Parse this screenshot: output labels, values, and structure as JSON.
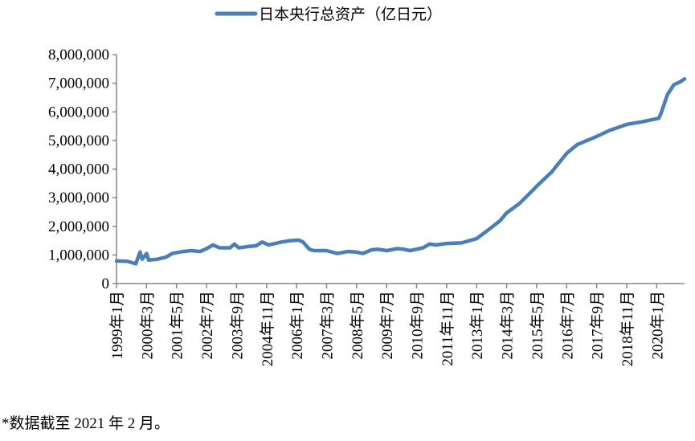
{
  "chart_data": {
    "type": "line",
    "title": "",
    "xlabel": "",
    "ylabel": "",
    "ylim": [
      0,
      8000000
    ],
    "y_ticks": [
      "0",
      "1,000,000",
      "2,000,000",
      "3,000,000",
      "4,000,000",
      "5,000,000",
      "6,000,000",
      "7,000,000",
      "8,000,000"
    ],
    "x_range": [
      "1999-01",
      "2021-02"
    ],
    "x_ticks": [
      {
        "date": "1999-01",
        "label": "1999年1月"
      },
      {
        "date": "2000-03",
        "label": "2000年3月"
      },
      {
        "date": "2001-05",
        "label": "2001年5月"
      },
      {
        "date": "2002-07",
        "label": "2002年7月"
      },
      {
        "date": "2003-09",
        "label": "2003年9月"
      },
      {
        "date": "2004-11",
        "label": "2004年11月"
      },
      {
        "date": "2006-01",
        "label": "2006年1月"
      },
      {
        "date": "2007-03",
        "label": "2007年3月"
      },
      {
        "date": "2008-05",
        "label": "2008年5月"
      },
      {
        "date": "2009-07",
        "label": "2009年7月"
      },
      {
        "date": "2010-09",
        "label": "2010年9月"
      },
      {
        "date": "2011-11",
        "label": "2011年11月"
      },
      {
        "date": "2013-01",
        "label": "2013年1月"
      },
      {
        "date": "2014-03",
        "label": "2014年3月"
      },
      {
        "date": "2015-05",
        "label": "2015年5月"
      },
      {
        "date": "2016-07",
        "label": "2016年7月"
      },
      {
        "date": "2017-09",
        "label": "2017年9月"
      },
      {
        "date": "2018-11",
        "label": "2018年11月"
      },
      {
        "date": "2020-01",
        "label": "2020年1月"
      }
    ],
    "grid": false,
    "legend_position": "top",
    "series": [
      {
        "name": "日本央行总资产（亿日元）",
        "color": "#4a7ebb",
        "x": [
          "1999-01",
          "1999-06",
          "1999-10",
          "1999-12",
          "2000-01",
          "2000-03",
          "2000-04",
          "2000-08",
          "2000-12",
          "2001-03",
          "2001-08",
          "2001-12",
          "2002-04",
          "2002-07",
          "2002-10",
          "2003-01",
          "2003-06",
          "2003-08",
          "2003-10",
          "2004-03",
          "2004-06",
          "2004-09",
          "2004-12",
          "2005-06",
          "2005-10",
          "2006-02",
          "2006-04",
          "2006-07",
          "2006-09",
          "2007-03",
          "2007-08",
          "2008-01",
          "2008-05",
          "2008-08",
          "2008-12",
          "2009-03",
          "2009-07",
          "2009-12",
          "2010-03",
          "2010-06",
          "2010-12",
          "2011-03",
          "2011-06",
          "2011-11",
          "2012-06",
          "2012-12",
          "2013-01",
          "2013-06",
          "2013-12",
          "2014-03",
          "2014-09",
          "2015-05",
          "2015-12",
          "2016-07",
          "2016-12",
          "2017-09",
          "2018-03",
          "2018-11",
          "2019-06",
          "2020-01",
          "2020-02",
          "2020-03",
          "2020-06",
          "2020-09",
          "2020-12",
          "2021-02"
        ],
        "values": [
          790000,
          780000,
          690000,
          1100000,
          850000,
          1050000,
          820000,
          850000,
          920000,
          1050000,
          1120000,
          1150000,
          1120000,
          1220000,
          1350000,
          1250000,
          1250000,
          1380000,
          1250000,
          1300000,
          1320000,
          1450000,
          1350000,
          1450000,
          1500000,
          1520000,
          1450000,
          1200000,
          1150000,
          1150000,
          1050000,
          1120000,
          1100000,
          1050000,
          1180000,
          1200000,
          1150000,
          1220000,
          1200000,
          1150000,
          1250000,
          1380000,
          1350000,
          1400000,
          1420000,
          1550000,
          1570000,
          1850000,
          2200000,
          2470000,
          2800000,
          3400000,
          3900000,
          4550000,
          4860000,
          5140000,
          5350000,
          5560000,
          5650000,
          5760000,
          5780000,
          5950000,
          6600000,
          6950000,
          7050000,
          7150000
        ]
      }
    ]
  },
  "footnote": "*数据截至 2021 年 2 月。"
}
